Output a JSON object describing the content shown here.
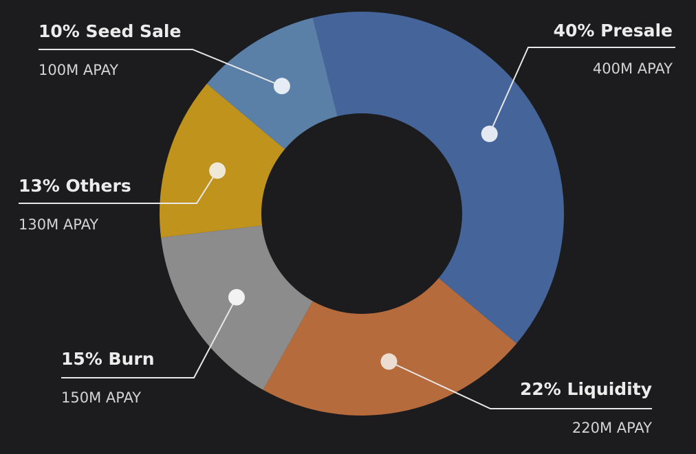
{
  "chart_data": {
    "type": "pie",
    "unit": "M APAY",
    "slices": [
      {
        "label": "Presale",
        "percent": 40,
        "value": 400,
        "title": "40% Presale",
        "amount": "400M APAY",
        "color": "#44649a",
        "dot_color": "#e4e8f0"
      },
      {
        "label": "Liquidity",
        "percent": 22,
        "value": 220,
        "title": "22% Liquidity",
        "amount": "220M APAY",
        "color": "#b56b3b",
        "dot_color": "#ecdcd2"
      },
      {
        "label": "Burn",
        "percent": 15,
        "value": 150,
        "title": "15% Burn",
        "amount": "150M APAY",
        "color": "#8c8c8c",
        "dot_color": "#f2f2f2"
      },
      {
        "label": "Others",
        "percent": 13,
        "value": 130,
        "title": "13% Others",
        "amount": "130M APAY",
        "color": "#c0931c",
        "dot_color": "#f0e8d6"
      },
      {
        "label": "Seed Sale",
        "percent": 10,
        "value": 100,
        "title": "10% Seed Sale",
        "amount": "100M APAY",
        "color": "#5a80a8",
        "dot_color": "#e6ecf4"
      }
    ]
  },
  "colors": {
    "background": "#1c1c1e",
    "hole": "#1c1c1e",
    "leader_line": "#e8e8e8"
  }
}
